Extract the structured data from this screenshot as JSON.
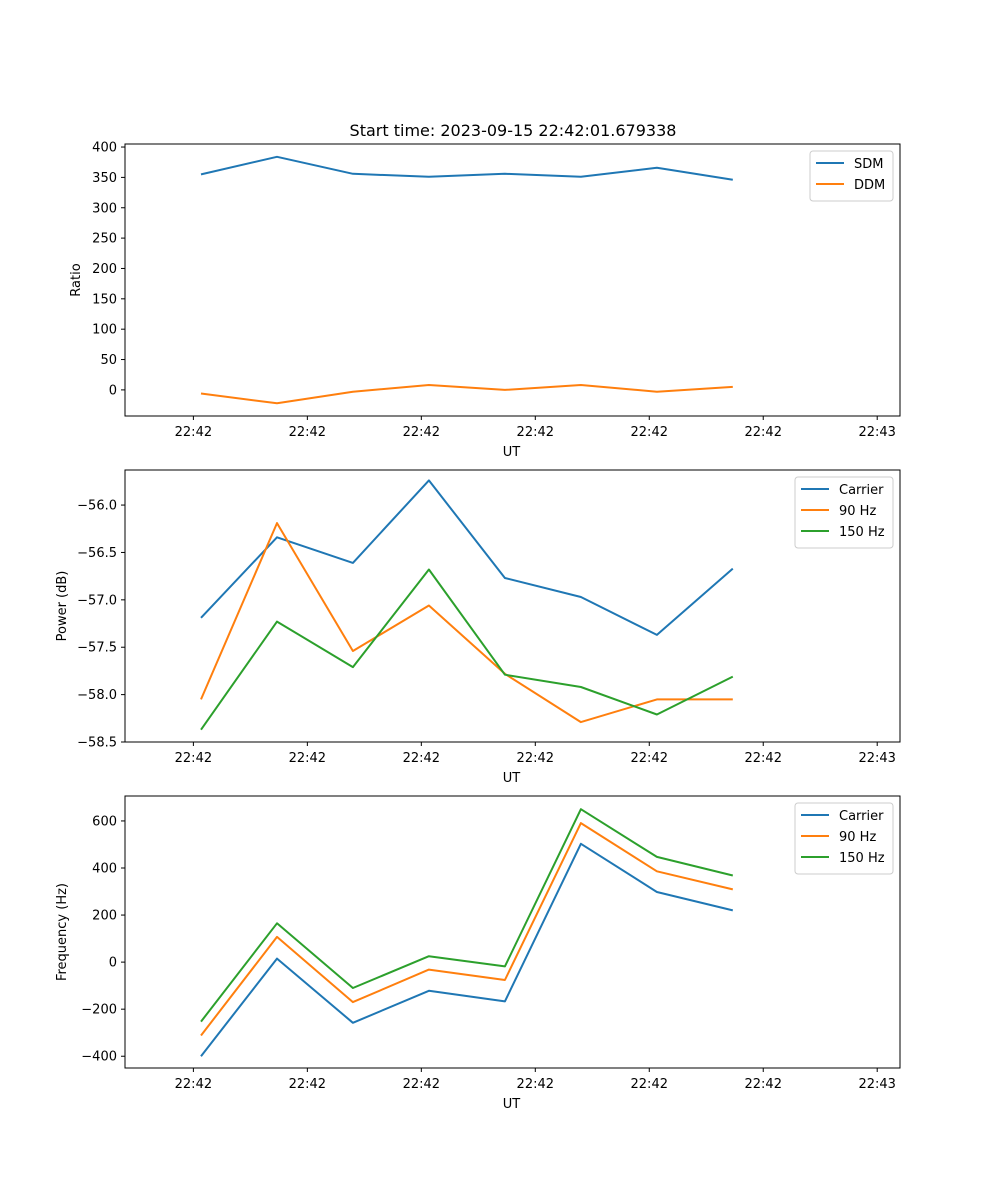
{
  "chart_data": [
    {
      "type": "line",
      "title": "Start time: 2023-09-15 22:42:01.679338",
      "xlabel": "UT",
      "ylabel": "Ratio",
      "x_tick_labels": [
        "22:42",
        "22:42",
        "22:42",
        "22:42",
        "22:42",
        "22:42",
        "22:43"
      ],
      "y_ticks": [
        0,
        50,
        100,
        150,
        200,
        250,
        300,
        350,
        400
      ],
      "ylim": [
        -43,
        405
      ],
      "xlim": [
        0,
        10.2
      ],
      "x": [
        1,
        2,
        3,
        4,
        5,
        6,
        7,
        8
      ],
      "legend_position": "top-right",
      "series": [
        {
          "name": "SDM",
          "color": "#1f77b4",
          "values": [
            355,
            384,
            356,
            351,
            356,
            351,
            366,
            346
          ]
        },
        {
          "name": "DDM",
          "color": "#ff7f0e",
          "values": [
            -6,
            -22,
            -3,
            8,
            0,
            8,
            -3,
            5
          ]
        }
      ]
    },
    {
      "type": "line",
      "title": "",
      "xlabel": "UT",
      "ylabel": "Power (dB)",
      "x_tick_labels": [
        "22:42",
        "22:42",
        "22:42",
        "22:42",
        "22:42",
        "22:42",
        "22:43"
      ],
      "y_ticks": [
        -58.5,
        -58.0,
        -57.5,
        -57.0,
        -56.5,
        -56.0
      ],
      "y_tick_labels": [
        "−58.5",
        "−58.0",
        "−57.5",
        "−57.0",
        "−56.5",
        "−56.0"
      ],
      "ylim": [
        -58.5,
        -55.63
      ],
      "xlim": [
        0,
        10.2
      ],
      "x": [
        1,
        2,
        3,
        4,
        5,
        6,
        7,
        8
      ],
      "legend_position": "top-right",
      "series": [
        {
          "name": "Carrier",
          "color": "#1f77b4",
          "values": [
            -57.19,
            -56.34,
            -56.61,
            -55.74,
            -56.77,
            -56.97,
            -57.37,
            -56.67
          ]
        },
        {
          "name": "90 Hz",
          "color": "#ff7f0e",
          "values": [
            -58.05,
            -56.19,
            -57.54,
            -57.06,
            -57.78,
            -58.29,
            -58.05,
            -58.05
          ]
        },
        {
          "name": "150 Hz",
          "color": "#2ca02c",
          "values": [
            -58.37,
            -57.23,
            -57.71,
            -56.68,
            -57.79,
            -57.92,
            -58.21,
            -57.81
          ]
        }
      ]
    },
    {
      "type": "line",
      "title": "",
      "xlabel": "UT",
      "ylabel": "Frequency (Hz)",
      "x_tick_labels": [
        "22:42",
        "22:42",
        "22:42",
        "22:42",
        "22:42",
        "22:42",
        "22:43"
      ],
      "y_ticks": [
        -400,
        -200,
        0,
        200,
        400,
        600
      ],
      "y_tick_labels": [
        "−400",
        "−200",
        "0",
        "200",
        "400",
        "600"
      ],
      "ylim": [
        -450,
        706
      ],
      "xlim": [
        0,
        10.2
      ],
      "x": [
        1,
        2,
        3,
        4,
        5,
        6,
        7,
        8
      ],
      "legend_position": "top-right",
      "series": [
        {
          "name": "Carrier",
          "color": "#1f77b4",
          "values": [
            -400,
            15,
            -258,
            -122,
            -167,
            503,
            298,
            220
          ]
        },
        {
          "name": "90 Hz",
          "color": "#ff7f0e",
          "values": [
            -312,
            107,
            -170,
            -32,
            -76,
            591,
            386,
            309
          ]
        },
        {
          "name": "150 Hz",
          "color": "#2ca02c",
          "values": [
            -253,
            165,
            -110,
            25,
            -18,
            650,
            447,
            368
          ]
        }
      ]
    }
  ]
}
